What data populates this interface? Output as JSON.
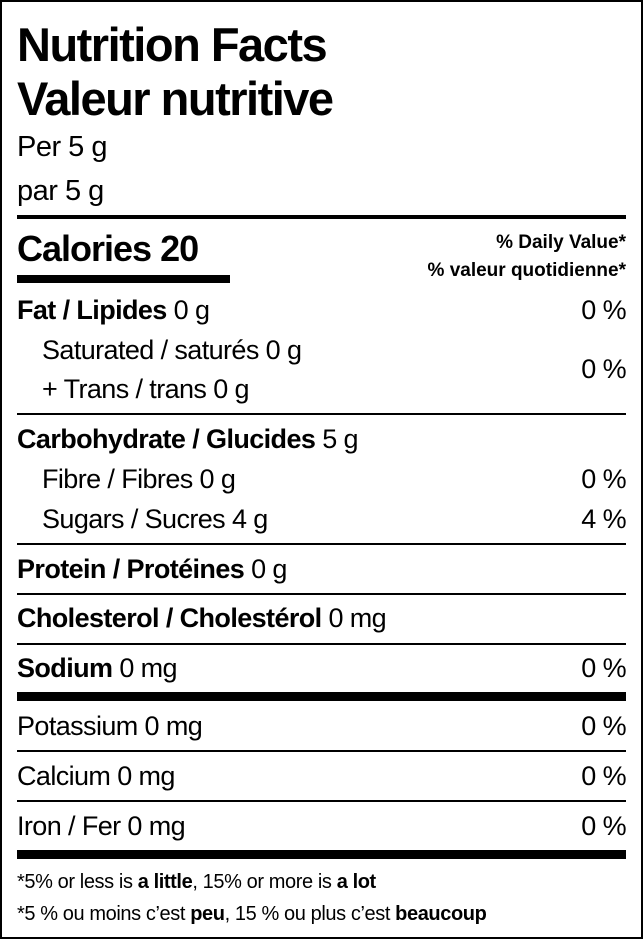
{
  "title_en": "Nutrition Facts",
  "title_fr": "Valeur nutritive",
  "serving_en": "Per 5 g",
  "serving_fr": "par 5 g",
  "calories_label": "Calories 20",
  "dv_en": "% Daily Value*",
  "dv_fr": "% valeur quotidienne*",
  "rows": {
    "fat": {
      "label": "Fat / Lipides",
      "amount": "0 g",
      "dv": "0 %"
    },
    "saturated": {
      "label": "Saturated / saturés 0 g"
    },
    "trans": {
      "label": "+ Trans / trans 0 g",
      "dv": "0 %"
    },
    "carb": {
      "label": "Carbohydrate / Glucides",
      "amount": "5 g"
    },
    "fibre": {
      "label": "Fibre / Fibres 0 g",
      "dv": "0 %"
    },
    "sugars": {
      "label": "Sugars / Sucres 4 g",
      "dv": "4 %"
    },
    "protein": {
      "label": "Protein / Protéines",
      "amount": "0 g"
    },
    "cholesterol": {
      "label": "Cholesterol / Cholestérol",
      "amount": "0 mg"
    },
    "sodium": {
      "label": "Sodium",
      "amount": "0 mg",
      "dv": "0 %"
    },
    "potassium": {
      "label": "Potassium 0 mg",
      "dv": "0 %"
    },
    "calcium": {
      "label": "Calcium 0 mg",
      "dv": "0 %"
    },
    "iron": {
      "label": "Iron / Fer 0 mg",
      "dv": "0 %"
    }
  },
  "footer": {
    "en_a": "*5% or less is ",
    "en_b": "a little",
    "en_c": ", 15% or more is ",
    "en_d": "a lot",
    "fr_a": "*5 % ou moins c’est ",
    "fr_b": "peu",
    "fr_c": ", 15 % ou plus c’est ",
    "fr_d": "beaucoup"
  }
}
